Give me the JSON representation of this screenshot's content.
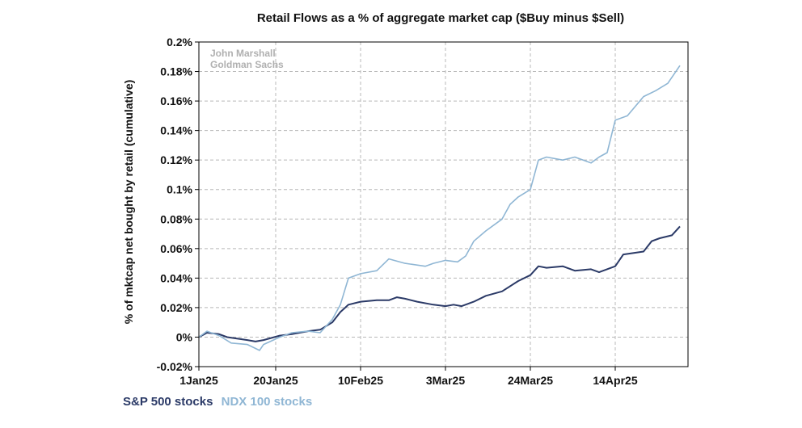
{
  "chart_data": {
    "type": "line",
    "title": "Retail Flows as a % of aggregate market cap ($Buy minus $Sell)",
    "xlabel": "",
    "ylabel": "% of mktcap net bought by retail (cumulative)",
    "watermark": [
      "John Marshall",
      "Goldman Sachs"
    ],
    "x_tick_labels": [
      "1Jan25",
      "20Jan25",
      "10Feb25",
      "3Mar25",
      "24Mar25",
      "14Apr25"
    ],
    "x_ticks": [
      "2025-01-01",
      "2025-01-20",
      "2025-02-10",
      "2025-03-03",
      "2025-03-24",
      "2025-04-14"
    ],
    "xlim": [
      "2025-01-01",
      "2025-05-02"
    ],
    "ylim": [
      -0.02,
      0.2
    ],
    "y_ticks": [
      -0.02,
      0,
      0.02,
      0.04,
      0.06,
      0.08,
      0.1,
      0.12,
      0.14,
      0.16,
      0.18,
      0.2
    ],
    "y_tick_labels": [
      "-0.02%",
      "0%",
      "0.02%",
      "0.04%",
      "0.06%",
      "0.08%",
      "0.1%",
      "0.12%",
      "0.14%",
      "0.16%",
      "0.18%",
      "0.2%"
    ],
    "grid": true,
    "legend_position": "below chart, left",
    "series": [
      {
        "name": "S&P 500 stocks",
        "color": "#2b3a67",
        "points": [
          [
            "2025-01-01",
            0.0
          ],
          [
            "2025-01-03",
            0.003
          ],
          [
            "2025-01-06",
            0.002
          ],
          [
            "2025-01-08",
            0.0
          ],
          [
            "2025-01-13",
            -0.002
          ],
          [
            "2025-01-15",
            -0.003
          ],
          [
            "2025-01-17",
            -0.002
          ],
          [
            "2025-01-21",
            0.001
          ],
          [
            "2025-01-24",
            0.002
          ],
          [
            "2025-01-28",
            0.004
          ],
          [
            "2025-01-31",
            0.005
          ],
          [
            "2025-02-03",
            0.01
          ],
          [
            "2025-02-05",
            0.017
          ],
          [
            "2025-02-07",
            0.022
          ],
          [
            "2025-02-10",
            0.024
          ],
          [
            "2025-02-14",
            0.025
          ],
          [
            "2025-02-17",
            0.025
          ],
          [
            "2025-02-19",
            0.027
          ],
          [
            "2025-02-21",
            0.026
          ],
          [
            "2025-02-24",
            0.024
          ],
          [
            "2025-02-28",
            0.022
          ],
          [
            "2025-03-03",
            0.021
          ],
          [
            "2025-03-05",
            0.022
          ],
          [
            "2025-03-07",
            0.021
          ],
          [
            "2025-03-10",
            0.024
          ],
          [
            "2025-03-13",
            0.028
          ],
          [
            "2025-03-17",
            0.031
          ],
          [
            "2025-03-21",
            0.038
          ],
          [
            "2025-03-24",
            0.042
          ],
          [
            "2025-03-26",
            0.048
          ],
          [
            "2025-03-28",
            0.047
          ],
          [
            "2025-04-01",
            0.048
          ],
          [
            "2025-04-04",
            0.045
          ],
          [
            "2025-04-08",
            0.046
          ],
          [
            "2025-04-10",
            0.044
          ],
          [
            "2025-04-14",
            0.048
          ],
          [
            "2025-04-16",
            0.056
          ],
          [
            "2025-04-21",
            0.058
          ],
          [
            "2025-04-23",
            0.065
          ],
          [
            "2025-04-25",
            0.067
          ],
          [
            "2025-04-28",
            0.069
          ],
          [
            "2025-04-30",
            0.075
          ]
        ]
      },
      {
        "name": "NDX 100 stocks",
        "color": "#8fb6d4",
        "points": [
          [
            "2025-01-01",
            0.0
          ],
          [
            "2025-01-03",
            0.004
          ],
          [
            "2025-01-06",
            0.001
          ],
          [
            "2025-01-09",
            -0.004
          ],
          [
            "2025-01-13",
            -0.005
          ],
          [
            "2025-01-16",
            -0.009
          ],
          [
            "2025-01-17",
            -0.005
          ],
          [
            "2025-01-21",
            0.0
          ],
          [
            "2025-01-24",
            0.003
          ],
          [
            "2025-01-28",
            0.004
          ],
          [
            "2025-01-31",
            0.003
          ],
          [
            "2025-02-03",
            0.012
          ],
          [
            "2025-02-05",
            0.022
          ],
          [
            "2025-02-07",
            0.04
          ],
          [
            "2025-02-10",
            0.043
          ],
          [
            "2025-02-14",
            0.045
          ],
          [
            "2025-02-17",
            0.053
          ],
          [
            "2025-02-21",
            0.05
          ],
          [
            "2025-02-26",
            0.048
          ],
          [
            "2025-02-28",
            0.05
          ],
          [
            "2025-03-03",
            0.052
          ],
          [
            "2025-03-06",
            0.051
          ],
          [
            "2025-03-08",
            0.055
          ],
          [
            "2025-03-10",
            0.065
          ],
          [
            "2025-03-13",
            0.072
          ],
          [
            "2025-03-17",
            0.08
          ],
          [
            "2025-03-19",
            0.09
          ],
          [
            "2025-03-21",
            0.095
          ],
          [
            "2025-03-24",
            0.1
          ],
          [
            "2025-03-26",
            0.12
          ],
          [
            "2025-03-28",
            0.122
          ],
          [
            "2025-04-01",
            0.12
          ],
          [
            "2025-04-04",
            0.122
          ],
          [
            "2025-04-08",
            0.118
          ],
          [
            "2025-04-10",
            0.122
          ],
          [
            "2025-04-12",
            0.125
          ],
          [
            "2025-04-14",
            0.147
          ],
          [
            "2025-04-17",
            0.15
          ],
          [
            "2025-04-21",
            0.163
          ],
          [
            "2025-04-24",
            0.167
          ],
          [
            "2025-04-27",
            0.172
          ],
          [
            "2025-04-30",
            0.184
          ]
        ]
      }
    ]
  }
}
